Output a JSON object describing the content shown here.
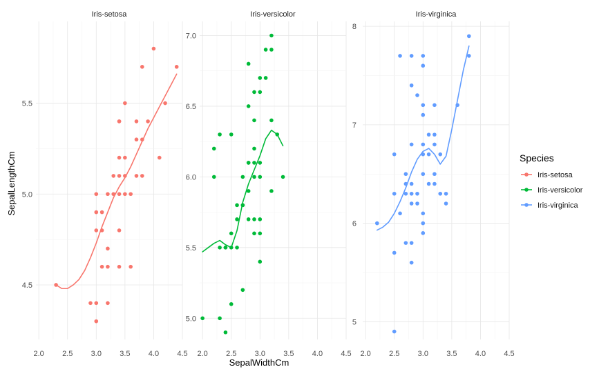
{
  "chart_data": {
    "type": "scatter",
    "xlabel": "SepalWidthCm",
    "ylabel": "SepalLengthCm",
    "legend_title": "Species",
    "legend_position": "right",
    "grid": true,
    "x_ticks": [
      "2.0",
      "2.5",
      "3.0",
      "3.5",
      "4.0",
      "4.5"
    ],
    "facets": [
      {
        "title": "Iris-setosa",
        "xlim": [
          1.95,
          4.5
        ],
        "ylim": [
          4.2,
          5.95
        ],
        "y_ticks": [
          "4.5",
          "5.0",
          "5.5"
        ],
        "color": "#F8766D",
        "points": [
          [
            4.0,
            5.8
          ],
          [
            3.8,
            5.7
          ],
          [
            4.4,
            5.7
          ],
          [
            4.2,
            5.5
          ],
          [
            3.5,
            5.5
          ],
          [
            3.4,
            5.4
          ],
          [
            3.7,
            5.4
          ],
          [
            3.9,
            5.4
          ],
          [
            3.4,
            5.4
          ],
          [
            3.4,
            5.2
          ],
          [
            3.5,
            5.2
          ],
          [
            4.1,
            5.2
          ],
          [
            3.8,
            5.3
          ],
          [
            3.7,
            5.3
          ],
          [
            3.3,
            5.1
          ],
          [
            3.4,
            5.1
          ],
          [
            3.5,
            5.1
          ],
          [
            3.8,
            5.1
          ],
          [
            3.7,
            5.1
          ],
          [
            3.0,
            5.0
          ],
          [
            3.2,
            5.0
          ],
          [
            3.3,
            5.0
          ],
          [
            3.4,
            5.0
          ],
          [
            3.5,
            5.0
          ],
          [
            3.6,
            5.0
          ],
          [
            3.0,
            4.9
          ],
          [
            3.1,
            4.9
          ],
          [
            3.0,
            4.8
          ],
          [
            3.1,
            4.8
          ],
          [
            3.4,
            4.8
          ],
          [
            3.2,
            4.7
          ],
          [
            3.1,
            4.6
          ],
          [
            3.2,
            4.6
          ],
          [
            3.4,
            4.6
          ],
          [
            3.6,
            4.6
          ],
          [
            2.3,
            4.5
          ],
          [
            2.9,
            4.4
          ],
          [
            3.0,
            4.4
          ],
          [
            3.2,
            4.4
          ],
          [
            3.0,
            4.3
          ]
        ],
        "smooth": [
          [
            2.3,
            4.5
          ],
          [
            2.4,
            4.48
          ],
          [
            2.5,
            4.48
          ],
          [
            2.6,
            4.5
          ],
          [
            2.7,
            4.53
          ],
          [
            2.8,
            4.58
          ],
          [
            2.9,
            4.65
          ],
          [
            3.0,
            4.73
          ],
          [
            3.1,
            4.82
          ],
          [
            3.2,
            4.9
          ],
          [
            3.3,
            4.98
          ],
          [
            3.4,
            5.04
          ],
          [
            3.5,
            5.09
          ],
          [
            3.6,
            5.15
          ],
          [
            3.7,
            5.22
          ],
          [
            3.8,
            5.29
          ],
          [
            3.9,
            5.36
          ],
          [
            4.0,
            5.42
          ],
          [
            4.1,
            5.48
          ],
          [
            4.2,
            5.54
          ],
          [
            4.3,
            5.6
          ],
          [
            4.4,
            5.66
          ]
        ]
      },
      {
        "title": "Iris-versicolor",
        "xlim": [
          1.95,
          4.5
        ],
        "ylim": [
          4.85,
          7.1
        ],
        "y_ticks": [
          "5.0",
          "5.5",
          "6.0",
          "6.5",
          "7.0"
        ],
        "color": "#00BA38",
        "points": [
          [
            3.2,
            7.0
          ],
          [
            3.2,
            6.9
          ],
          [
            3.1,
            6.9
          ],
          [
            2.8,
            6.8
          ],
          [
            3.0,
            6.7
          ],
          [
            3.1,
            6.7
          ],
          [
            2.9,
            6.6
          ],
          [
            3.0,
            6.6
          ],
          [
            2.8,
            6.5
          ],
          [
            2.9,
            6.4
          ],
          [
            3.2,
            6.4
          ],
          [
            2.2,
            6.2
          ],
          [
            2.3,
            6.3
          ],
          [
            2.5,
            6.3
          ],
          [
            3.3,
            6.3
          ],
          [
            2.9,
            6.2
          ],
          [
            2.2,
            6.0
          ],
          [
            2.8,
            6.1
          ],
          [
            2.9,
            6.1
          ],
          [
            3.0,
            6.1
          ],
          [
            2.8,
            6.1
          ],
          [
            2.7,
            6.0
          ],
          [
            2.9,
            6.0
          ],
          [
            3.4,
            6.0
          ],
          [
            3.0,
            6.0
          ],
          [
            2.8,
            5.9
          ],
          [
            3.2,
            5.9
          ],
          [
            2.6,
            5.8
          ],
          [
            2.7,
            5.8
          ],
          [
            2.7,
            5.8
          ],
          [
            2.8,
            5.7
          ],
          [
            2.9,
            5.7
          ],
          [
            2.6,
            5.7
          ],
          [
            3.0,
            5.7
          ],
          [
            2.5,
            5.6
          ],
          [
            2.9,
            5.6
          ],
          [
            3.0,
            5.6
          ],
          [
            2.3,
            5.5
          ],
          [
            2.4,
            5.5
          ],
          [
            2.5,
            5.5
          ],
          [
            2.6,
            5.5
          ],
          [
            2.4,
            5.5
          ],
          [
            3.0,
            5.4
          ],
          [
            2.7,
            5.2
          ],
          [
            2.5,
            5.1
          ],
          [
            2.0,
            5.0
          ],
          [
            2.3,
            5.0
          ],
          [
            2.4,
            4.9
          ]
        ],
        "smooth": [
          [
            2.0,
            5.47
          ],
          [
            2.1,
            5.5
          ],
          [
            2.2,
            5.53
          ],
          [
            2.3,
            5.55
          ],
          [
            2.4,
            5.52
          ],
          [
            2.5,
            5.5
          ],
          [
            2.6,
            5.62
          ],
          [
            2.7,
            5.82
          ],
          [
            2.8,
            5.95
          ],
          [
            2.9,
            6.05
          ],
          [
            3.0,
            6.15
          ],
          [
            3.1,
            6.27
          ],
          [
            3.2,
            6.33
          ],
          [
            3.3,
            6.3
          ],
          [
            3.4,
            6.22
          ]
        ]
      },
      {
        "title": "Iris-virginica",
        "xlim": [
          1.95,
          4.5
        ],
        "ylim": [
          4.82,
          8.05
        ],
        "y_ticks": [
          "5",
          "6",
          "7",
          "8"
        ],
        "color": "#619CFF",
        "points": [
          [
            3.8,
            7.9
          ],
          [
            3.8,
            7.7
          ],
          [
            2.6,
            7.7
          ],
          [
            2.8,
            7.7
          ],
          [
            3.0,
            7.7
          ],
          [
            3.0,
            7.6
          ],
          [
            2.8,
            7.4
          ],
          [
            2.9,
            7.3
          ],
          [
            3.0,
            7.2
          ],
          [
            3.2,
            7.2
          ],
          [
            3.6,
            7.2
          ],
          [
            3.0,
            7.1
          ],
          [
            2.8,
            6.8
          ],
          [
            3.0,
            6.8
          ],
          [
            3.2,
            6.8
          ],
          [
            2.5,
            6.7
          ],
          [
            3.1,
            6.9
          ],
          [
            3.2,
            6.9
          ],
          [
            3.3,
            6.7
          ],
          [
            3.0,
            6.7
          ],
          [
            3.1,
            6.7
          ],
          [
            2.8,
            6.4
          ],
          [
            2.7,
            6.4
          ],
          [
            3.1,
            6.4
          ],
          [
            3.2,
            6.4
          ],
          [
            2.5,
            6.3
          ],
          [
            2.7,
            6.3
          ],
          [
            2.8,
            6.3
          ],
          [
            2.9,
            6.3
          ],
          [
            3.3,
            6.3
          ],
          [
            3.4,
            6.3
          ],
          [
            2.7,
            6.5
          ],
          [
            3.0,
            6.5
          ],
          [
            3.2,
            6.5
          ],
          [
            2.6,
            6.1
          ],
          [
            3.0,
            6.1
          ],
          [
            2.8,
            6.2
          ],
          [
            3.4,
            6.2
          ],
          [
            2.9,
            6.2
          ],
          [
            2.2,
            6.0
          ],
          [
            3.0,
            6.0
          ],
          [
            3.0,
            5.9
          ],
          [
            2.7,
            5.8
          ],
          [
            2.8,
            5.8
          ],
          [
            2.5,
            5.7
          ],
          [
            2.8,
            5.6
          ],
          [
            2.5,
            4.9
          ]
        ],
        "smooth": [
          [
            2.2,
            5.93
          ],
          [
            2.3,
            5.96
          ],
          [
            2.4,
            6.01
          ],
          [
            2.5,
            6.1
          ],
          [
            2.6,
            6.22
          ],
          [
            2.7,
            6.36
          ],
          [
            2.8,
            6.52
          ],
          [
            2.9,
            6.65
          ],
          [
            3.0,
            6.73
          ],
          [
            3.1,
            6.76
          ],
          [
            3.2,
            6.7
          ],
          [
            3.3,
            6.6
          ],
          [
            3.4,
            6.68
          ],
          [
            3.5,
            6.95
          ],
          [
            3.6,
            7.25
          ],
          [
            3.7,
            7.55
          ],
          [
            3.8,
            7.8
          ]
        ]
      }
    ]
  }
}
